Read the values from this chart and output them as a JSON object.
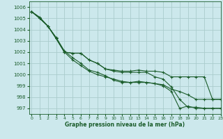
{
  "title": "Graphe pression niveau de la mer (hPa)",
  "background_color": "#cce8ec",
  "grid_color": "#aacccc",
  "line_color": "#1a5c2a",
  "xlim": [
    -0.3,
    23
  ],
  "ylim": [
    996.5,
    1006.5
  ],
  "yticks": [
    997,
    998,
    999,
    1000,
    1001,
    1002,
    1003,
    1004,
    1005,
    1006
  ],
  "xticks": [
    0,
    1,
    2,
    3,
    4,
    5,
    6,
    7,
    8,
    9,
    10,
    11,
    12,
    13,
    14,
    15,
    16,
    17,
    18,
    19,
    20,
    21,
    22,
    23
  ],
  "series": [
    [
      1005.6,
      1005.0,
      1004.3,
      1003.2,
      1002.0,
      1001.9,
      1001.9,
      1001.3,
      1001.0,
      1000.5,
      1000.4,
      1000.3,
      1000.3,
      1000.4,
      1000.3,
      1000.3,
      1000.2,
      999.8,
      999.8,
      999.8,
      999.8,
      999.8,
      997.8,
      997.8
    ],
    [
      1005.6,
      1005.0,
      1004.3,
      1003.3,
      1002.1,
      1001.5,
      1001.0,
      1000.4,
      1000.2,
      999.9,
      999.5,
      999.3,
      999.3,
      999.4,
      999.3,
      999.2,
      999.1,
      998.7,
      998.5,
      998.2,
      997.8,
      997.8,
      997.8,
      997.8
    ],
    [
      1005.6,
      1005.1,
      1004.3,
      1003.2,
      1002.0,
      1001.9,
      1001.9,
      1001.3,
      1001.0,
      1000.5,
      1000.3,
      1000.2,
      1000.2,
      1000.2,
      1000.2,
      999.8,
      999.6,
      998.9,
      997.8,
      997.1,
      997.1,
      997.0,
      997.0,
      997.0
    ],
    [
      1005.6,
      1005.0,
      1004.3,
      1003.2,
      1002.0,
      1001.3,
      1000.8,
      1000.3,
      1000.0,
      999.8,
      999.6,
      999.4,
      999.3,
      999.3,
      999.3,
      999.2,
      999.0,
      998.5,
      997.0,
      997.2,
      997.0,
      997.0,
      997.0,
      997.0
    ]
  ]
}
